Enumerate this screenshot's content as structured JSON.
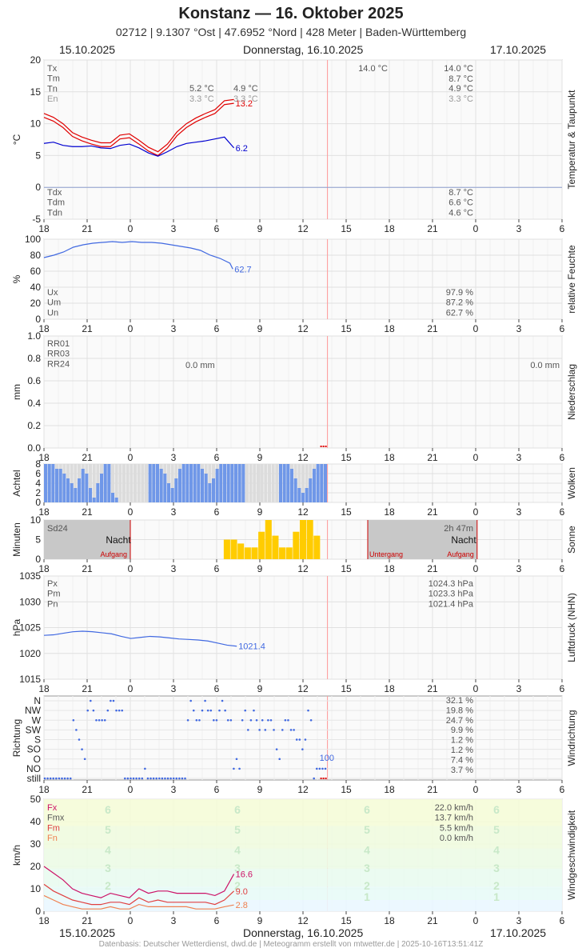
{
  "header": {
    "title": "Konstanz  —  16. Oktober 2025",
    "subtitle": "02712  |  9.1307 °Ost  |  47.6952 °Nord  |  428 Meter  |  Baden-Württemberg",
    "date_left": "15.10.2025",
    "date_center": "Donnerstag, 16.10.2025",
    "date_right": "17.10.2025"
  },
  "footer": {
    "date_left": "15.10.2025",
    "date_center": "Donnerstag, 16.10.2025",
    "date_right": "17.10.2025",
    "source": "Datenbasis: Deutscher Wetterdienst, dwd.de | Meteogramm erstellt von mtwetter.de | 2025-10-16T13:51:41Z"
  },
  "colors": {
    "temp": "#e00000",
    "dew": "#0000d0",
    "humid": "#4169e1",
    "cloud": "#6f97e8",
    "sun": "#ffcc00",
    "night": "#c8c8c8",
    "now": "#ff9999",
    "gust": "#cc1166",
    "wind": "#e04040",
    "windmin": "#f08050"
  },
  "chart_data": [
    {
      "type": "line",
      "name": "temperature",
      "side_label": "Temperatur & Taupunkt",
      "ylabel": "°C",
      "ylim": [
        -5,
        20
      ],
      "yticks": [
        "20",
        "15",
        "10",
        "5",
        "0",
        "-5"
      ],
      "xticks": [
        "18",
        "21",
        "0",
        "3",
        "6",
        "9",
        "12",
        "15",
        "18",
        "21",
        "0",
        "3",
        "6"
      ],
      "stats_left": [
        {
          "label": "Tx",
          "value": ""
        },
        {
          "label": "Tm",
          "value": ""
        },
        {
          "label": "Tn",
          "value": ""
        },
        {
          "label": "En",
          "value": ""
        }
      ],
      "day1": {
        "tn": "5.2 °C",
        "en": "3.3 °C",
        "tn2": "4.9 °C",
        "en2": "3.3 °C"
      },
      "day2": {
        "tx": "14.0 °C",
        "tx2": "14.0 °C",
        "tm2": "8.7 °C",
        "tn2": "4.9 °C",
        "en2": "3.3 °C"
      },
      "dew_stats": [
        {
          "label": "Tdx",
          "value": "8.7 °C"
        },
        {
          "label": "Tdm",
          "value": "6.6 °C"
        },
        {
          "label": "Tdn",
          "value": "4.6 °C"
        }
      ],
      "end_temp": "13.2",
      "end_dew": "6.2",
      "x": [
        0,
        1,
        2,
        3,
        4,
        5,
        6,
        7,
        8,
        9,
        10,
        11,
        12,
        13,
        14,
        15,
        16,
        17,
        18,
        19,
        20
      ],
      "temp": [
        11.0,
        10.4,
        9.4,
        8.0,
        7.3,
        6.8,
        6.4,
        6.4,
        7.6,
        7.8,
        6.8,
        5.7,
        5.0,
        6.2,
        8.1,
        9.4,
        10.3,
        11.0,
        11.6,
        13.0,
        13.2
      ],
      "dew": [
        6.9,
        7.1,
        6.6,
        6.4,
        6.4,
        6.5,
        6.2,
        6.1,
        6.6,
        6.8,
        6.2,
        5.4,
        4.9,
        5.6,
        6.4,
        6.9,
        7.1,
        7.3,
        7.6,
        7.9,
        6.2
      ]
    },
    {
      "type": "line",
      "name": "humidity",
      "side_label": "relative Feuchte",
      "ylabel": "%",
      "ylim": [
        0,
        100
      ],
      "yticks": [
        "100",
        "80",
        "60",
        "40",
        "20",
        "0"
      ],
      "stats": [
        {
          "label": "Ux",
          "value": "97.9 %"
        },
        {
          "label": "Um",
          "value": "87.2 %"
        },
        {
          "label": "Un",
          "value": "62.7 %"
        }
      ],
      "end": "62.7",
      "x": [
        0,
        1,
        2,
        3,
        4,
        5,
        6,
        7,
        8,
        9,
        10,
        11,
        12,
        13,
        14,
        15,
        16,
        17,
        18,
        19,
        19.3
      ],
      "values": [
        77,
        80,
        84,
        90,
        93,
        95,
        96,
        97,
        96,
        97,
        96,
        96,
        95,
        93,
        91,
        89,
        86,
        80,
        76,
        70,
        62.7
      ]
    },
    {
      "type": "bar",
      "name": "precipitation",
      "side_label": "Niederschlag",
      "ylabel": "mm",
      "ylim": [
        0,
        1
      ],
      "yticks": [
        "1.0",
        "0.8",
        "0.6",
        "0.4",
        "0.2",
        "0.0"
      ],
      "labels": [
        {
          "label": "RR01"
        },
        {
          "label": "RR03"
        },
        {
          "label": "RR24"
        }
      ],
      "day1": "0.0 mm",
      "day2": "0.0 mm"
    },
    {
      "type": "bar",
      "name": "clouds",
      "side_label": "Wolken",
      "ylabel": "Achtel",
      "ylim": [
        0,
        8
      ],
      "yticks": [
        "8",
        "6",
        "4",
        "2",
        "0"
      ],
      "values": [
        8,
        8,
        8,
        7,
        7,
        6,
        5,
        4,
        3,
        5,
        7,
        6,
        3,
        1,
        4,
        6,
        8,
        8,
        2,
        1,
        0,
        0,
        0,
        0,
        0,
        0,
        0,
        0,
        8,
        8,
        8,
        7,
        6,
        4,
        3,
        5,
        7,
        8,
        8,
        8,
        8,
        8,
        7,
        6,
        4,
        5,
        7,
        8,
        8,
        8,
        8,
        8,
        8,
        8,
        0,
        0,
        0,
        0,
        0,
        0,
        0,
        0,
        0,
        8,
        8,
        8,
        7,
        5,
        3,
        2,
        3,
        5,
        7,
        8,
        8,
        8
      ]
    },
    {
      "type": "bar",
      "name": "sunshine",
      "side_label": "Sonne",
      "ylabel": "Minuten",
      "ylim": [
        0,
        10
      ],
      "yticks": [
        "10",
        "5",
        "0"
      ],
      "sd24": "Sd24",
      "sun_total": "2h 47m",
      "night": "Nacht",
      "night2": "Nacht",
      "sunrise": "Aufgang",
      "sunset": "Untergang",
      "sunrise2": "Aufgang",
      "values": [
        10,
        10,
        10,
        10,
        0,
        0,
        0,
        0,
        0,
        0,
        0,
        0,
        0,
        0,
        0,
        0,
        0,
        0,
        0,
        0,
        0,
        0,
        0,
        0,
        0,
        0,
        5,
        5,
        4,
        3,
        3,
        7,
        10,
        6,
        3,
        3,
        7,
        10,
        10,
        6,
        0
      ]
    },
    {
      "type": "line",
      "name": "pressure",
      "side_label": "Luftdruck (NHN)",
      "ylabel": "hPa",
      "ylim": [
        1015,
        1035
      ],
      "yticks": [
        "1035",
        "1030",
        "1025",
        "1020",
        "1015"
      ],
      "stats": [
        {
          "label": "Px",
          "value": "1024.3 hPa"
        },
        {
          "label": "Pm",
          "value": "1023.3 hPa"
        },
        {
          "label": "Pn",
          "value": "1021.4 hPa"
        }
      ],
      "end": "1021.4",
      "x": [
        0,
        1,
        2,
        3,
        4,
        5,
        6,
        7,
        8,
        9,
        10,
        11,
        12,
        13,
        14,
        15,
        16,
        17,
        18,
        19,
        20
      ],
      "values": [
        1023.5,
        1023.6,
        1023.9,
        1024.2,
        1024.3,
        1024.2,
        1024.0,
        1023.8,
        1023.3,
        1022.9,
        1023.1,
        1023.3,
        1023.2,
        1023.0,
        1022.8,
        1022.7,
        1022.6,
        1022.4,
        1022.0,
        1021.6,
        1021.4
      ]
    },
    {
      "type": "scatter",
      "name": "wind_direction",
      "side_label": "Windrichtung",
      "ylabel": "Richtung",
      "categories": [
        "N",
        "NW",
        "W",
        "SW",
        "S",
        "SO",
        "O",
        "NO",
        "still"
      ],
      "stats": [
        "32.1 %",
        "19.8 %",
        "24.7 %",
        "9.9 %",
        "1.2 %",
        "1.2 %",
        "7.4 %",
        "3.7 %"
      ],
      "end": "100",
      "values": [
        0,
        0,
        0,
        0,
        0,
        0,
        0,
        0,
        0,
        0,
        6,
        5,
        4,
        3,
        2,
        7,
        8,
        7,
        6,
        6,
        6,
        6,
        7,
        8,
        8,
        7,
        7,
        7,
        0,
        0,
        0,
        0,
        0,
        0,
        0,
        1,
        0,
        0,
        0,
        0,
        0,
        0,
        0,
        0,
        0,
        0,
        0,
        0,
        0,
        0,
        6,
        8,
        7,
        6,
        6,
        7,
        8,
        7,
        7,
        6,
        6,
        7,
        8,
        7,
        6,
        6,
        1,
        2,
        1,
        6,
        7,
        5,
        6,
        7,
        6,
        5,
        6,
        5,
        6,
        6,
        5,
        3,
        2,
        5,
        6,
        6,
        5,
        5,
        4,
        4,
        3,
        4,
        7,
        6,
        0,
        1,
        1,
        1,
        1
      ]
    },
    {
      "type": "line",
      "name": "wind_speed",
      "side_label": "Windgeschwindigkeit",
      "ylabel": "km/h",
      "ylim": [
        0,
        50
      ],
      "yticks": [
        "50",
        "40",
        "30",
        "20",
        "10",
        "0"
      ],
      "stats": [
        {
          "label": "Fx",
          "value": "22.0 km/h"
        },
        {
          "label": "Fmx",
          "value": "13.7 km/h"
        },
        {
          "label": "Fm",
          "value": "5.5 km/h"
        },
        {
          "label": "Fn",
          "value": "0.0 km/h"
        }
      ],
      "beaufort": [
        "6",
        "5",
        "4",
        "3",
        "2",
        "1"
      ],
      "end_gust": "16.6",
      "end_mean": "9.0",
      "end_min": "2.8",
      "x": [
        0,
        1,
        2,
        3,
        4,
        5,
        6,
        7,
        8,
        9,
        10,
        11,
        12,
        13,
        14,
        15,
        16,
        17,
        18,
        19,
        20
      ],
      "gust": [
        20,
        17,
        14,
        10,
        8,
        7,
        6,
        8,
        7,
        6,
        10,
        8,
        9,
        9,
        8,
        8,
        8,
        8,
        7,
        9,
        16.6
      ],
      "mean": [
        12,
        9,
        7,
        5,
        4,
        3,
        3,
        4,
        4,
        3,
        6,
        4,
        5,
        4,
        4,
        4,
        4,
        4,
        3,
        5,
        9
      ],
      "min": [
        7,
        5,
        3,
        2,
        1,
        1,
        1,
        2,
        1,
        1,
        3,
        2,
        2,
        2,
        2,
        2,
        1,
        1,
        1,
        2,
        2.8
      ]
    }
  ]
}
